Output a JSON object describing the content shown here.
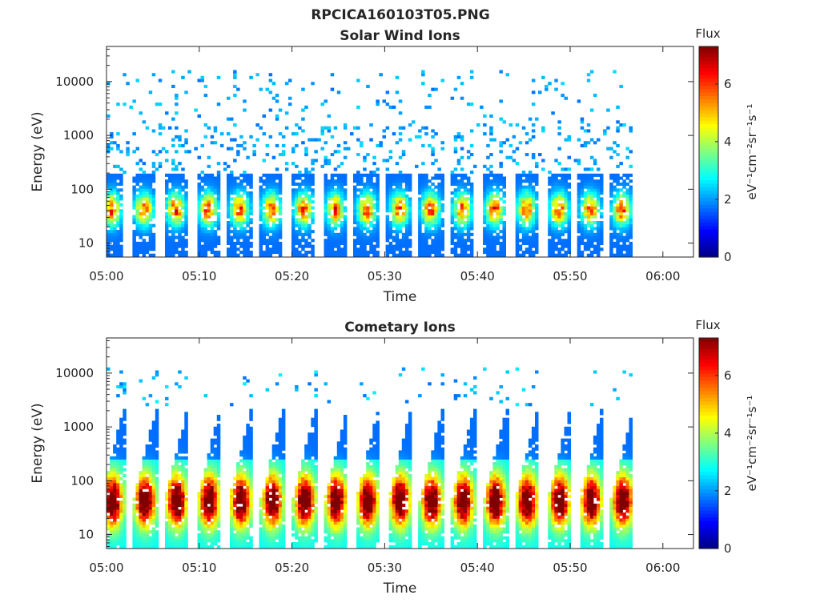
{
  "figure": {
    "title": "RPCICA160103T05.PNG"
  },
  "colormap": [
    "#00007f",
    "#0000ff",
    "#007fff",
    "#00ffff",
    "#7fff7f",
    "#ffff00",
    "#ff7f00",
    "#ff0000",
    "#7f0000"
  ],
  "chart_data": [
    {
      "type": "heatmap",
      "title": "Solar Wind Ions",
      "xlabel": "Time",
      "ylabel": "Energy (eV)",
      "x_ticks": [
        "05:00",
        "05:10",
        "05:20",
        "05:30",
        "05:40",
        "05:50",
        "06:00"
      ],
      "x_range_minutes": [
        0,
        63.3
      ],
      "y_scale": "log",
      "y_ticks": [
        "10",
        "100",
        "1000",
        "10000"
      ],
      "y_range_eV": [
        5.5,
        45000
      ],
      "colorbar": {
        "label": "Flux",
        "units": "eV⁻¹cm⁻²sr⁻¹s⁻¹",
        "ticks": [
          "0",
          "2",
          "4",
          "6"
        ],
        "range": [
          0,
          7.3
        ]
      },
      "data_end_minutes": 56.7,
      "burst_centers_minutes": [
        0.4,
        3.9,
        7.3,
        10.8,
        14.2,
        17.6,
        21.1,
        24.5,
        27.9,
        31.4,
        34.8,
        38.2,
        41.7,
        45.1,
        48.6,
        52.0,
        55.4
      ],
      "peak_energy_eV": 40,
      "peak_flux": 5.2,
      "sparse_high_energy_flux": 1.7
    },
    {
      "type": "heatmap",
      "title": "Cometary Ions",
      "xlabel": "Time",
      "ylabel": "Energy (eV)",
      "x_ticks": [
        "05:00",
        "05:10",
        "05:20",
        "05:30",
        "05:40",
        "05:50",
        "06:00"
      ],
      "x_range_minutes": [
        0,
        63.3
      ],
      "y_scale": "log",
      "y_ticks": [
        "10",
        "100",
        "1000",
        "10000"
      ],
      "y_range_eV": [
        5.5,
        45000
      ],
      "colorbar": {
        "label": "Flux",
        "units": "eV⁻¹cm⁻²sr⁻¹s⁻¹",
        "ticks": [
          "0",
          "2",
          "4",
          "6"
        ],
        "range": [
          0,
          7.3
        ]
      },
      "data_end_minutes": 56.7,
      "burst_centers_minutes": [
        0.5,
        4.0,
        7.4,
        10.9,
        14.3,
        17.7,
        21.2,
        24.6,
        28.0,
        31.5,
        34.9,
        38.3,
        41.8,
        45.2,
        48.7,
        52.1,
        55.5
      ],
      "peak_energy_eV": 40,
      "peak_flux": 6.7,
      "spike_top_energy_eV": 2000
    }
  ]
}
